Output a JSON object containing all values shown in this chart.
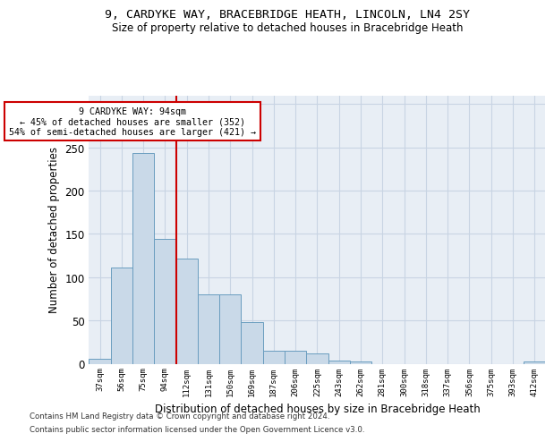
{
  "title1": "9, CARDYKE WAY, BRACEBRIDGE HEATH, LINCOLN, LN4 2SY",
  "title2": "Size of property relative to detached houses in Bracebridge Heath",
  "xlabel": "Distribution of detached houses by size in Bracebridge Heath",
  "ylabel": "Number of detached properties",
  "footnote1": "Contains HM Land Registry data © Crown copyright and database right 2024.",
  "footnote2": "Contains public sector information licensed under the Open Government Licence v3.0.",
  "annotation_line1": "9 CARDYKE WAY: 94sqm",
  "annotation_line2": "← 45% of detached houses are smaller (352)",
  "annotation_line3": "54% of semi-detached houses are larger (421) →",
  "bar_color": "#c9d9e8",
  "bar_edge_color": "#6a9dbf",
  "highlight_line_color": "#cc0000",
  "annotation_box_color": "#ffffff",
  "annotation_box_edge": "#cc0000",
  "grid_color": "#c8d4e3",
  "background_color": "#e8eef5",
  "categories": [
    "37sqm",
    "56sqm",
    "75sqm",
    "94sqm",
    "112sqm",
    "131sqm",
    "150sqm",
    "169sqm",
    "187sqm",
    "206sqm",
    "225sqm",
    "243sqm",
    "262sqm",
    "281sqm",
    "300sqm",
    "318sqm",
    "337sqm",
    "356sqm",
    "375sqm",
    "393sqm",
    "412sqm"
  ],
  "values": [
    6,
    111,
    243,
    144,
    121,
    80,
    80,
    48,
    15,
    15,
    12,
    4,
    3,
    0,
    0,
    0,
    0,
    0,
    0,
    0,
    3
  ],
  "highlight_index": 3,
  "ylim": [
    0,
    310
  ],
  "yticks": [
    0,
    50,
    100,
    150,
    200,
    250,
    300
  ]
}
